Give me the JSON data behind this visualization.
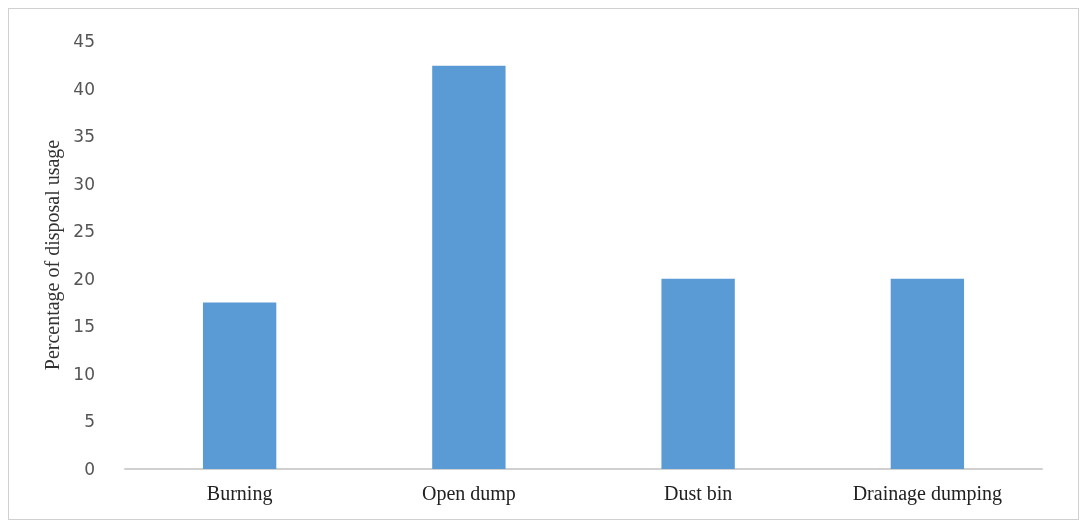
{
  "chart_data": {
    "type": "bar",
    "ylabel": "Percentage of disposal usage",
    "categories": [
      "Burning",
      "Open dump",
      "Dust bin",
      "Drainage dumping"
    ],
    "values": [
      17.5,
      42.4,
      20,
      20
    ],
    "color": "#5b9bd5",
    "ylim": [
      0,
      45
    ],
    "yticks": [
      0,
      5,
      10,
      15,
      20,
      25,
      30,
      35,
      40,
      45
    ],
    "grid": false
  }
}
